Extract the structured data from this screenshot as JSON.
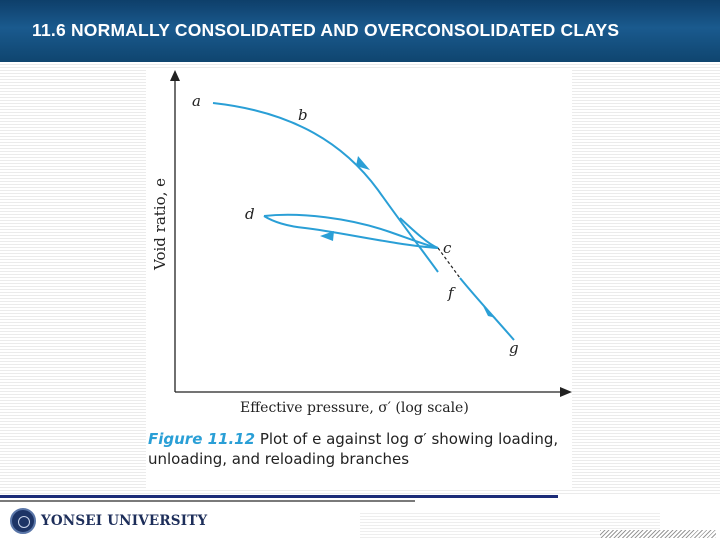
{
  "slide": {
    "title": "11.6 NORMALLY CONSOLIDATED AND OVERCONSOLIDATED  CLAYS"
  },
  "figure": {
    "y_axis_label": "Void ratio, e",
    "x_axis_label": "Effective pressure, σ′ (log scale)",
    "point_labels": [
      "a",
      "b",
      "c",
      "d",
      "f",
      "g"
    ],
    "caption_label": "Figure 11.12",
    "caption_text": "Plot of e against log σ′ showing loading, unloading, and reloading branches",
    "curve_color": "#2a9fd6"
  },
  "footer": {
    "university": "YONSEI UNIVERSITY"
  }
}
